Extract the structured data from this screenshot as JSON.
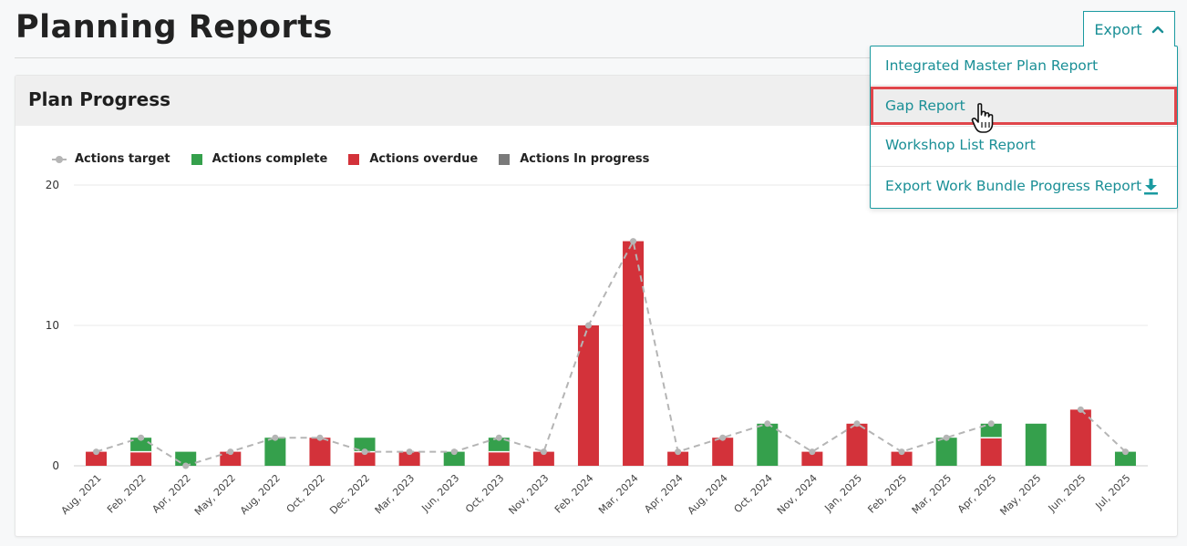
{
  "page": {
    "title": "Planning Reports"
  },
  "card": {
    "title": "Plan Progress"
  },
  "export": {
    "label": "Export",
    "menu": [
      {
        "label": "Integrated Master Plan Report"
      },
      {
        "label": "Gap Report",
        "hovered": true
      },
      {
        "label": "Workshop List Report"
      },
      {
        "label": "Export Work Bundle Progress Report",
        "icon": "download-icon"
      }
    ]
  },
  "colors": {
    "accent": "#1a9aa0",
    "complete": "#35a04c",
    "overdue": "#d3323a",
    "in_progress": "#7a7a7a",
    "target": "#b5b5b5"
  },
  "chart_data": {
    "type": "bar",
    "stacked": true,
    "legend": [
      "Actions target",
      "Actions complete",
      "Actions overdue",
      "Actions In progress"
    ],
    "categories": [
      "Aug, 2021",
      "Feb, 2022",
      "Apr, 2022",
      "May, 2022",
      "Aug, 2022",
      "Oct, 2022",
      "Dec, 2022",
      "Mar, 2023",
      "Jun, 2023",
      "Oct, 2023",
      "Nov, 2023",
      "Feb, 2024",
      "Mar, 2024",
      "Apr, 2024",
      "Aug, 2024",
      "Oct, 2024",
      "Nov, 2024",
      "Jan, 2025",
      "Feb, 2025",
      "Mar, 2025",
      "Apr, 2025",
      "May, 2025",
      "Jun, 2025",
      "Jul, 2025"
    ],
    "series": [
      {
        "name": "Actions overdue",
        "values": [
          1,
          1,
          0,
          1,
          0,
          2,
          1,
          1,
          0,
          1,
          1,
          10,
          16,
          1,
          2,
          0,
          1,
          3,
          1,
          0,
          2,
          0,
          4,
          0
        ]
      },
      {
        "name": "Actions complete",
        "values": [
          0,
          1,
          1,
          0,
          2,
          0,
          1,
          0,
          1,
          1,
          0,
          0,
          0,
          0,
          0,
          3,
          0,
          0,
          0,
          2,
          1,
          3,
          0,
          1
        ]
      },
      {
        "name": "Actions In progress",
        "values": [
          0,
          0,
          0,
          0,
          0,
          0,
          0,
          0,
          0,
          0,
          0,
          0,
          0,
          0,
          0,
          0,
          0,
          0,
          0,
          0,
          0,
          0,
          0,
          0
        ]
      },
      {
        "name": "Actions target",
        "type": "line",
        "values": [
          1,
          2,
          0,
          1,
          2,
          2,
          1,
          1,
          1,
          2,
          1,
          10,
          16,
          1,
          2,
          3,
          1,
          3,
          1,
          2,
          3,
          null,
          4,
          1
        ]
      }
    ],
    "yticks": [
      0,
      10,
      20
    ],
    "ylim": [
      0,
      20
    ],
    "grid": true,
    "legend_position": "top-left"
  }
}
